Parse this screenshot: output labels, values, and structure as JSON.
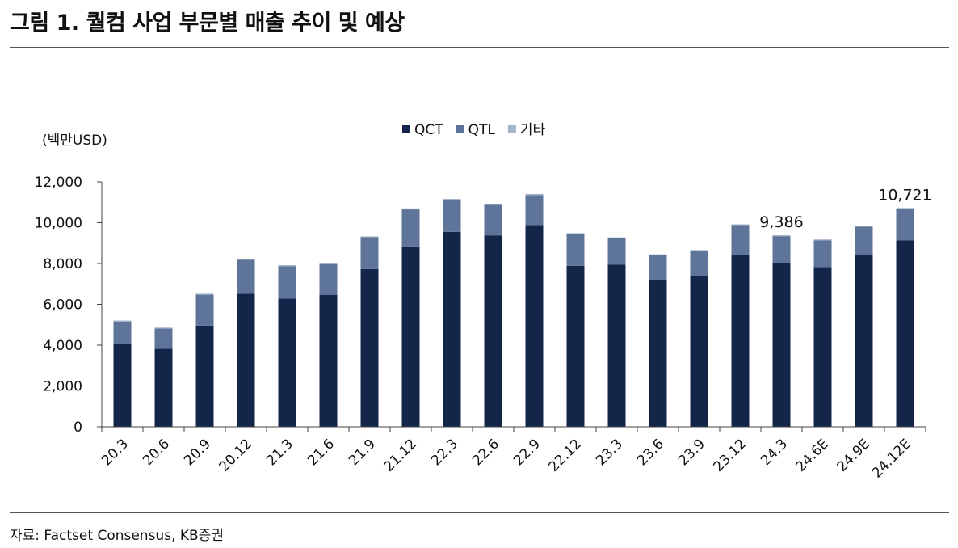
{
  "page": {
    "title": "그림 1. 퀄컴 사업 부문별 매출 추이 및 예상",
    "source": "자료: Factset Consensus, KB증권"
  },
  "chart_data": {
    "type": "bar",
    "stacked": true,
    "unit_label": "(백만USD)",
    "categories": [
      "20.3",
      "20.6",
      "20.9",
      "20.12",
      "21.3",
      "21.6",
      "21.9",
      "21.12",
      "22.3",
      "22.6",
      "22.9",
      "22.12",
      "23.3",
      "23.6",
      "23.9",
      "23.12",
      "24.3",
      "24.6E",
      "24.9E",
      "24.12E"
    ],
    "series": [
      {
        "name": "QCT",
        "color": "#14254a",
        "values": [
          4080,
          3820,
          4960,
          6520,
          6280,
          6470,
          7730,
          8840,
          9550,
          9380,
          9890,
          7890,
          7940,
          7170,
          7370,
          8420,
          8020,
          7820,
          8450,
          9140
        ]
      },
      {
        "name": "QTL",
        "color": "#5e7499",
        "values": [
          1070,
          990,
          1510,
          1670,
          1590,
          1500,
          1560,
          1810,
          1550,
          1500,
          1460,
          1550,
          1300,
          1240,
          1260,
          1460,
          1320,
          1310,
          1360,
          1530
        ]
      },
      {
        "name": "기타",
        "color": "#a3b3c9",
        "values": [
          60,
          50,
          50,
          30,
          50,
          40,
          40,
          50,
          70,
          50,
          60,
          50,
          40,
          40,
          30,
          40,
          46,
          50,
          50,
          51
        ]
      }
    ],
    "data_labels": [
      {
        "category": "24.3",
        "text": "9,386"
      },
      {
        "category": "24.12E",
        "text": "10,721"
      }
    ],
    "ylim": [
      0,
      12000
    ],
    "yticks": [
      "0",
      "2,000",
      "4,000",
      "6,000",
      "8,000",
      "10,000",
      "12,000"
    ],
    "ytick_values": [
      0,
      2000,
      4000,
      6000,
      8000,
      10000,
      12000
    ],
    "legend_position": "top-center",
    "grid": false
  }
}
